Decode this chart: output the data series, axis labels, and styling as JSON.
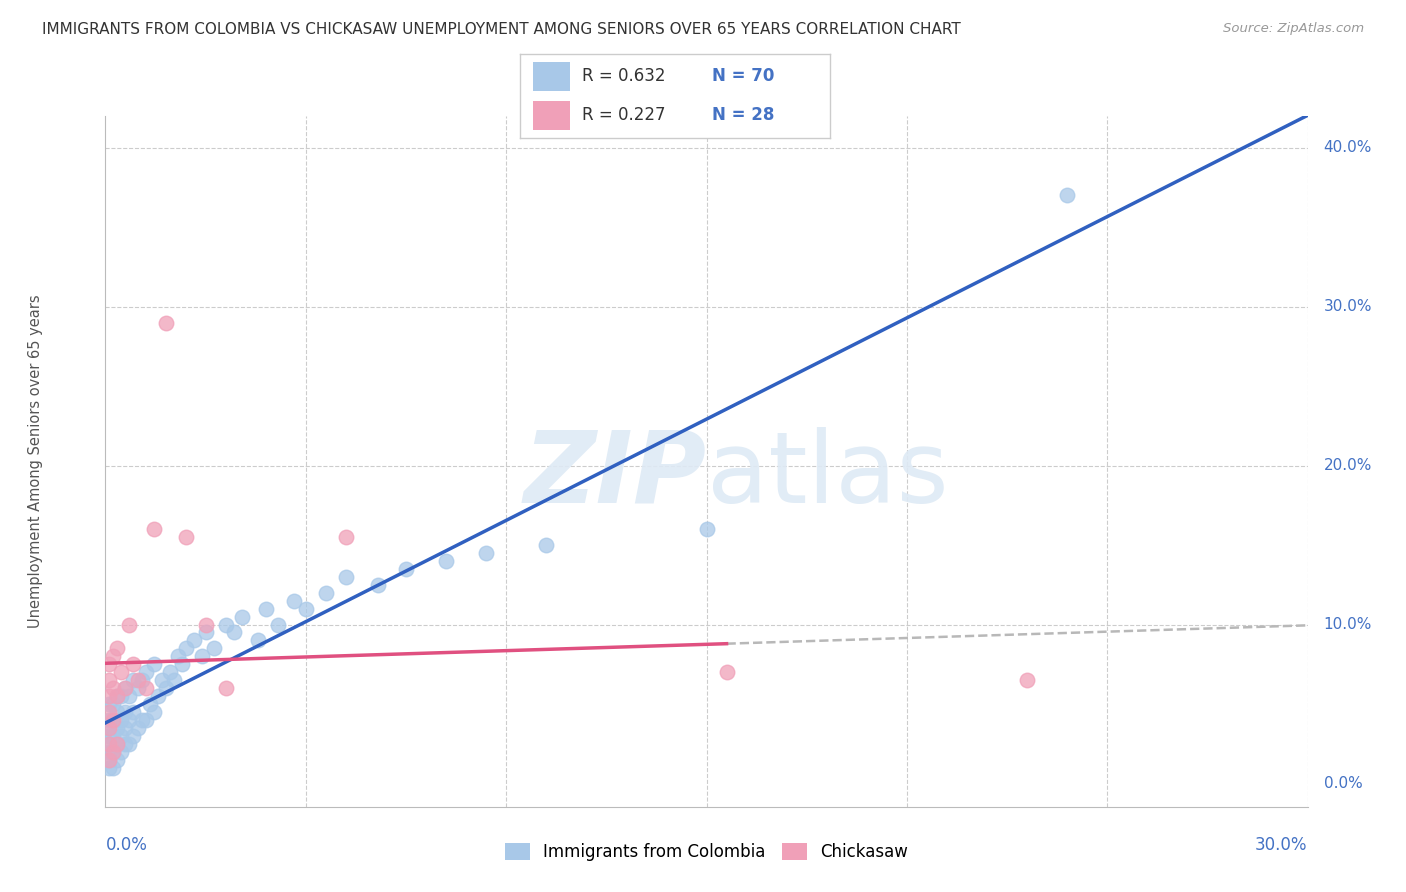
{
  "title": "IMMIGRANTS FROM COLOMBIA VS CHICKASAW UNEMPLOYMENT AMONG SENIORS OVER 65 YEARS CORRELATION CHART",
  "source": "Source: ZipAtlas.com",
  "ylabel": "Unemployment Among Seniors over 65 years",
  "legend_r1": "R = 0.632",
  "legend_n1": "N = 70",
  "legend_r2": "R = 0.227",
  "legend_n2": "N = 28",
  "blue_color": "#a8c8e8",
  "pink_color": "#f0a0b8",
  "blue_line_color": "#3060c0",
  "pink_line_color": "#e05080",
  "dashed_line_color": "#b8b8b8",
  "axis_label_color": "#4472c4",
  "title_color": "#404040",
  "xlim": [
    0.0,
    0.3
  ],
  "ylim": [
    -0.015,
    0.42
  ],
  "colombia_x": [
    0.001,
    0.001,
    0.001,
    0.001,
    0.001,
    0.001,
    0.001,
    0.001,
    0.002,
    0.002,
    0.002,
    0.002,
    0.002,
    0.003,
    0.003,
    0.003,
    0.003,
    0.003,
    0.004,
    0.004,
    0.004,
    0.004,
    0.005,
    0.005,
    0.005,
    0.005,
    0.006,
    0.006,
    0.006,
    0.007,
    0.007,
    0.007,
    0.008,
    0.008,
    0.009,
    0.009,
    0.01,
    0.01,
    0.011,
    0.012,
    0.012,
    0.013,
    0.014,
    0.015,
    0.016,
    0.017,
    0.018,
    0.019,
    0.02,
    0.022,
    0.024,
    0.025,
    0.027,
    0.03,
    0.032,
    0.034,
    0.038,
    0.04,
    0.043,
    0.047,
    0.05,
    0.055,
    0.06,
    0.068,
    0.075,
    0.085,
    0.095,
    0.11,
    0.15,
    0.24
  ],
  "colombia_y": [
    0.01,
    0.015,
    0.02,
    0.025,
    0.03,
    0.035,
    0.04,
    0.05,
    0.01,
    0.02,
    0.03,
    0.04,
    0.05,
    0.015,
    0.025,
    0.035,
    0.045,
    0.055,
    0.02,
    0.03,
    0.04,
    0.055,
    0.025,
    0.035,
    0.045,
    0.06,
    0.025,
    0.04,
    0.055,
    0.03,
    0.045,
    0.065,
    0.035,
    0.06,
    0.04,
    0.065,
    0.04,
    0.07,
    0.05,
    0.045,
    0.075,
    0.055,
    0.065,
    0.06,
    0.07,
    0.065,
    0.08,
    0.075,
    0.085,
    0.09,
    0.08,
    0.095,
    0.085,
    0.1,
    0.095,
    0.105,
    0.09,
    0.11,
    0.1,
    0.115,
    0.11,
    0.12,
    0.13,
    0.125,
    0.135,
    0.14,
    0.145,
    0.15,
    0.16,
    0.37
  ],
  "chickasaw_x": [
    0.001,
    0.001,
    0.001,
    0.001,
    0.001,
    0.001,
    0.001,
    0.002,
    0.002,
    0.002,
    0.002,
    0.003,
    0.003,
    0.003,
    0.004,
    0.005,
    0.006,
    0.007,
    0.008,
    0.01,
    0.012,
    0.015,
    0.02,
    0.025,
    0.03,
    0.06,
    0.155,
    0.23
  ],
  "chickasaw_y": [
    0.015,
    0.025,
    0.035,
    0.045,
    0.055,
    0.065,
    0.075,
    0.02,
    0.04,
    0.06,
    0.08,
    0.025,
    0.055,
    0.085,
    0.07,
    0.06,
    0.1,
    0.075,
    0.065,
    0.06,
    0.16,
    0.29,
    0.155,
    0.1,
    0.06,
    0.155,
    0.07,
    0.065
  ]
}
